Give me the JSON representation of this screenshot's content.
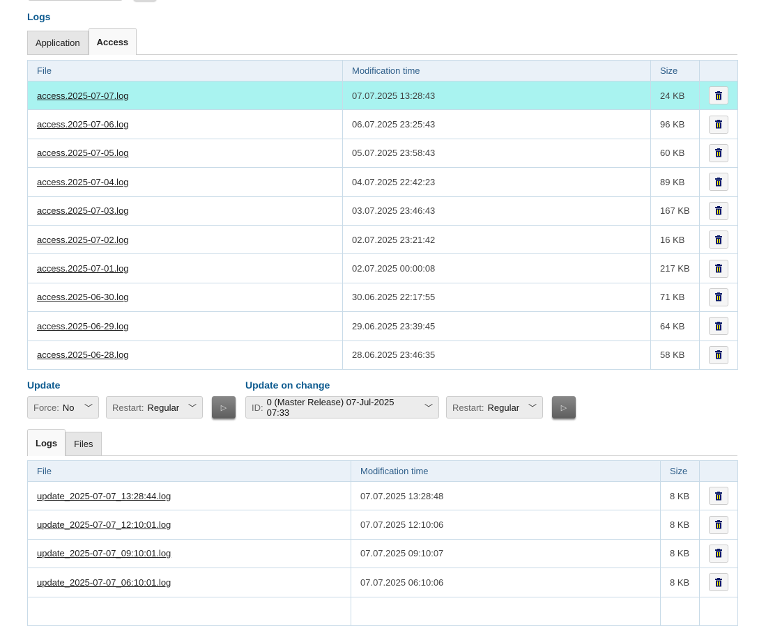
{
  "logs": {
    "title": "Logs",
    "tabs": [
      "Application",
      "Access"
    ],
    "columns": [
      "File",
      "Modification time",
      "Size",
      ""
    ],
    "rows": [
      {
        "file": "access.2025-07-07.log",
        "time": "07.07.2025 13:28:43",
        "size": "24 KB",
        "selected": true
      },
      {
        "file": "access.2025-07-06.log",
        "time": "06.07.2025 23:25:43",
        "size": "96 KB"
      },
      {
        "file": "access.2025-07-05.log",
        "time": "05.07.2025 23:58:43",
        "size": "60 KB"
      },
      {
        "file": "access.2025-07-04.log",
        "time": "04.07.2025 22:42:23",
        "size": "89 KB"
      },
      {
        "file": "access.2025-07-03.log",
        "time": "03.07.2025 23:46:43",
        "size": "167 KB"
      },
      {
        "file": "access.2025-07-02.log",
        "time": "02.07.2025 23:21:42",
        "size": "16 KB"
      },
      {
        "file": "access.2025-07-01.log",
        "time": "02.07.2025 00:00:08",
        "size": "217 KB"
      },
      {
        "file": "access.2025-06-30.log",
        "time": "30.06.2025 22:17:55",
        "size": "71 KB"
      },
      {
        "file": "access.2025-06-29.log",
        "time": "29.06.2025 23:39:45",
        "size": "64 KB"
      },
      {
        "file": "access.2025-06-28.log",
        "time": "28.06.2025 23:46:35",
        "size": "58 KB"
      }
    ]
  },
  "update": {
    "title": "Update",
    "force_label": "Force:",
    "force_value": "No",
    "restart_label": "Restart:",
    "restart_value": "Regular"
  },
  "update_on_change": {
    "title": "Update on change",
    "id_label": "ID:",
    "id_value": "0 (Master Release) 07-Jul-2025 07:33",
    "restart_label": "Restart:",
    "restart_value": "Regular"
  },
  "update_logs": {
    "tabs": [
      "Logs",
      "Files"
    ],
    "columns": [
      "File",
      "Modification time",
      "Size",
      ""
    ],
    "rows": [
      {
        "file": "update_2025-07-07_13:28:44.log",
        "time": "07.07.2025 13:28:48",
        "size": "8 KB"
      },
      {
        "file": "update_2025-07-07_12:10:01.log",
        "time": "07.07.2025 12:10:06",
        "size": "8 KB"
      },
      {
        "file": "update_2025-07-07_09:10:01.log",
        "time": "07.07.2025 09:10:07",
        "size": "8 KB"
      },
      {
        "file": "update_2025-07-07_06:10:01.log",
        "time": "07.07.2025 06:10:06",
        "size": "8 KB"
      },
      {
        "file": "",
        "time": "",
        "size": ""
      }
    ]
  },
  "colors": {
    "accent": "#0c5a8f",
    "selected_row": "#a9f3f0",
    "header_bg": "#eaf1f8"
  },
  "icons": {
    "delete": "trash-icon",
    "run": "play-icon",
    "dropdown": "chevron-down-icon"
  }
}
